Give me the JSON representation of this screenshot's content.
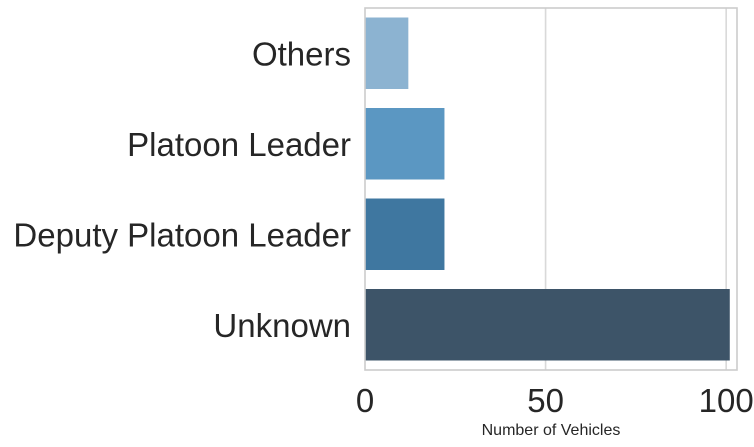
{
  "chart_data": {
    "type": "bar",
    "orientation": "horizontal",
    "categories": [
      "Others",
      "Platoon Leader",
      "Deputy Platoon Leader",
      "Unknown"
    ],
    "values": [
      12,
      22,
      22,
      101
    ],
    "colors": [
      "#8cb3d1",
      "#5b97c2",
      "#3f77a0",
      "#3d5468"
    ],
    "title": "",
    "xlabel": "Number of Vehicles",
    "ylabel": "",
    "xlim": [
      0,
      103
    ],
    "xticks": [
      0,
      50,
      100
    ],
    "xtick_labels": [
      "0",
      "50",
      "100"
    ],
    "grid": "vertical",
    "legend": "none"
  }
}
